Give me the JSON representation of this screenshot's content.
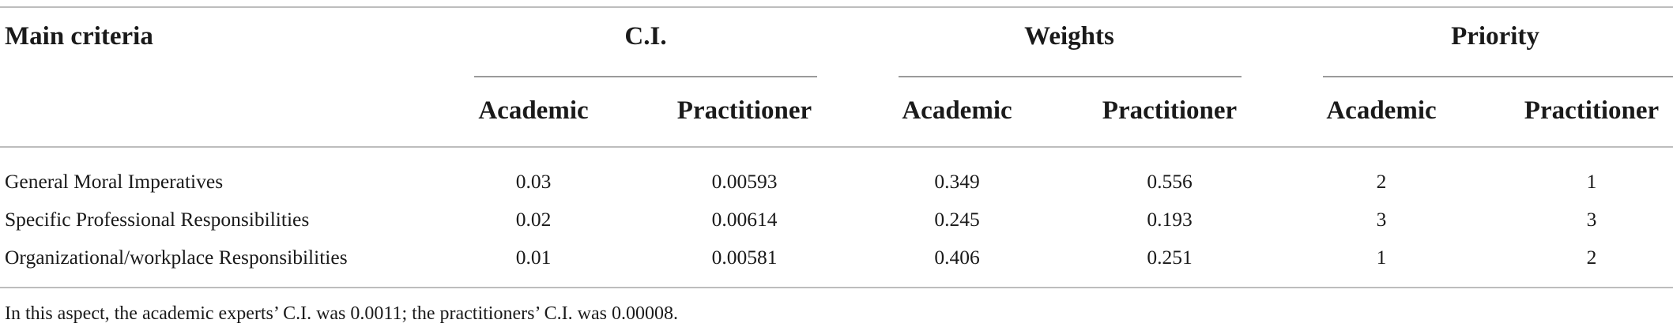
{
  "table": {
    "header": {
      "main_criteria": "Main criteria",
      "groups": [
        "C.I.",
        "Weights",
        "Priority"
      ],
      "subheaders": [
        "Academic",
        "Practitioner",
        "Academic",
        "Practitioner",
        "Academic",
        "Practitioner"
      ]
    },
    "rows": [
      {
        "criteria": "General Moral Imperatives",
        "values": [
          "0.03",
          "0.00593",
          "0.349",
          "0.556",
          "2",
          "1"
        ]
      },
      {
        "criteria": "Specific Professional Responsibilities",
        "values": [
          "0.02",
          "0.00614",
          "0.245",
          "0.193",
          "3",
          "3"
        ]
      },
      {
        "criteria": "Organizational/workplace Responsibilities",
        "values": [
          "0.01",
          "0.00581",
          "0.406",
          "0.251",
          "1",
          "2"
        ]
      }
    ],
    "footnote": "In this aspect, the academic experts’ C.I. was 0.0011; the practitioners’ C.I. was 0.00008."
  }
}
